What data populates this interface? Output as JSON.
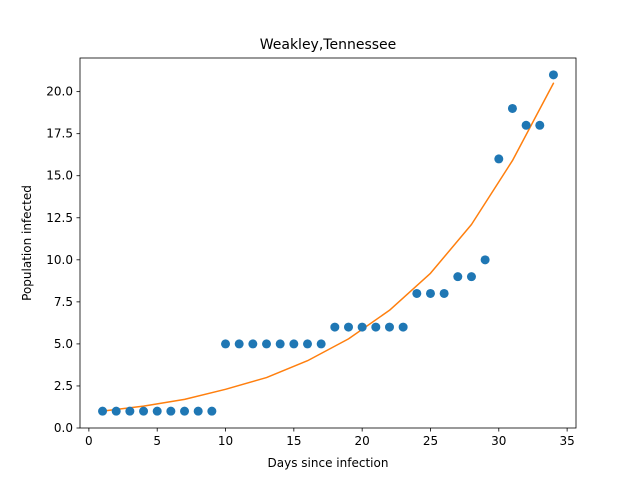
{
  "chart_data": {
    "type": "scatter",
    "title": "Weakley,Tennessee",
    "xlabel": "Days since infection",
    "ylabel": "Population infected",
    "xlim": [
      -0.65,
      35.65
    ],
    "ylim": [
      0,
      22
    ],
    "x_ticks": [
      0,
      5,
      10,
      15,
      20,
      25,
      30,
      35
    ],
    "x_tick_labels": [
      "0",
      "5",
      "10",
      "15",
      "20",
      "25",
      "30",
      "35"
    ],
    "y_ticks": [
      0,
      2.5,
      5,
      7.5,
      10,
      12.5,
      15,
      17.5,
      20
    ],
    "y_tick_labels": [
      "0.0",
      "2.5",
      "5.0",
      "7.5",
      "10.0",
      "12.5",
      "15.0",
      "17.5",
      "20.0"
    ],
    "grid": false,
    "series": [
      {
        "type": "scatter",
        "color": "#1f77b4",
        "x": [
          1,
          2,
          3,
          4,
          5,
          6,
          7,
          8,
          9,
          10,
          11,
          12,
          13,
          14,
          15,
          16,
          17,
          18,
          19,
          20,
          21,
          22,
          23,
          24,
          25,
          26,
          27,
          28,
          29,
          30,
          31,
          32,
          33,
          34
        ],
        "y": [
          1,
          1,
          1,
          1,
          1,
          1,
          1,
          1,
          1,
          5,
          5,
          5,
          5,
          5,
          5,
          5,
          5,
          6,
          6,
          6,
          6,
          6,
          6,
          8,
          8,
          8,
          9,
          9,
          10,
          16,
          19,
          18,
          18,
          21
        ]
      },
      {
        "type": "line",
        "color": "#ff7f0e",
        "x": [
          1,
          4,
          7,
          10,
          13,
          16,
          19,
          22,
          25,
          28,
          31,
          34
        ],
        "y": [
          1.0,
          1.3,
          1.7,
          2.3,
          3.0,
          4.0,
          5.3,
          7.0,
          9.2,
          12.1,
          15.9,
          20.5
        ]
      }
    ]
  }
}
